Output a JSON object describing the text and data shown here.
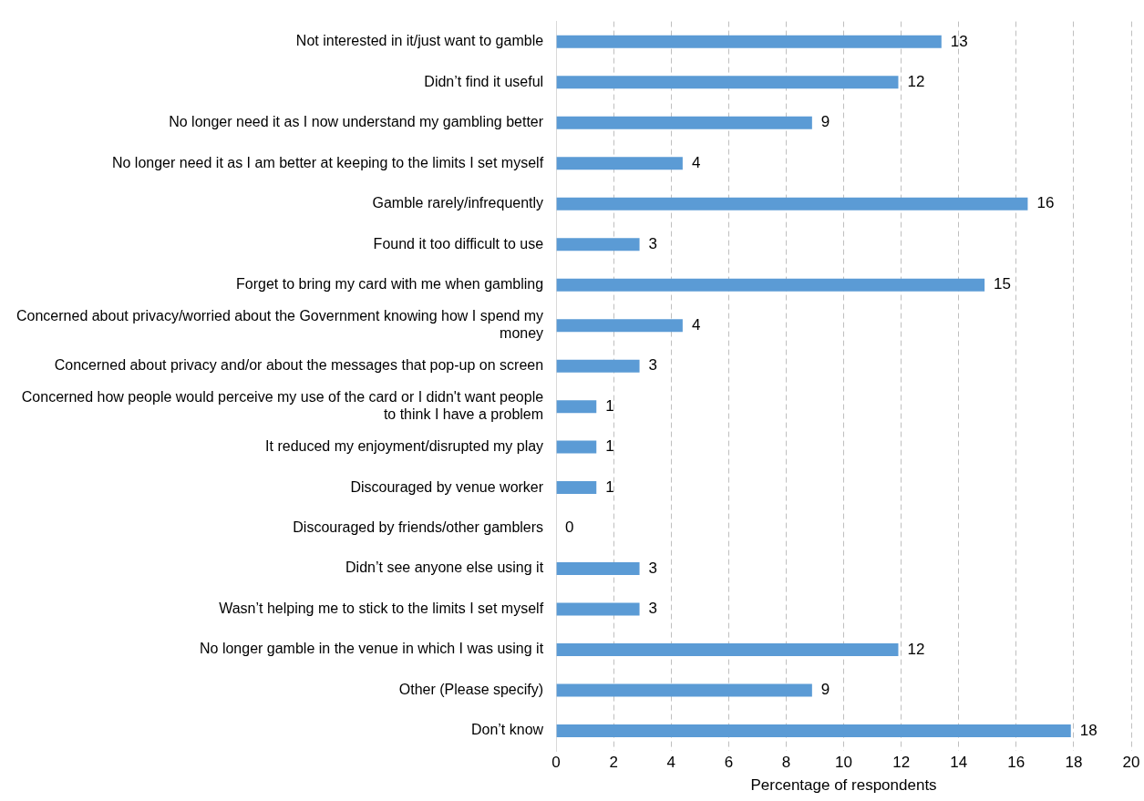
{
  "chart_data": {
    "type": "bar",
    "orientation": "horizontal",
    "xlabel": "Percentage of respondents",
    "categories": [
      "Not interested in it/just want to gamble",
      "Didn’t find it useful",
      "No longer need it as I now understand my gambling better",
      "No longer need it as I am better at keeping to the limits I set myself",
      "Gamble rarely/infrequently",
      "Found it too difficult to use",
      "Forget to bring my card with me when gambling",
      "Concerned about privacy/worried about the Government knowing how I spend my money",
      "Concerned about privacy and/or about the messages that pop-up on screen",
      "Concerned how people would perceive my use of the card or I didn't want people to think I have a problem",
      "It reduced my enjoyment/disrupted my play",
      "Discouraged by venue worker",
      "Discouraged by friends/other gamblers",
      "Didn’t see anyone else using it",
      "Wasn’t helping me to stick to the limits I set myself",
      "No longer gamble in the venue in which I was using it",
      "Other (Please specify)",
      "Don’t know"
    ],
    "values": [
      13.4,
      11.9,
      8.9,
      4.4,
      16.4,
      2.9,
      14.9,
      4.4,
      2.9,
      1.4,
      1.4,
      1.4,
      0,
      2.9,
      2.9,
      11.9,
      8.9,
      17.9
    ],
    "value_labels": [
      "13",
      "12",
      "9",
      "4",
      "16",
      "3",
      "15",
      "4",
      "3",
      "1",
      "1",
      "1",
      "0",
      "3",
      "3",
      "12",
      "9",
      "18"
    ],
    "color": "#5b9bd5",
    "xlim": [
      0,
      20
    ],
    "xticks": [
      0,
      2,
      4,
      6,
      8,
      10,
      12,
      14,
      16,
      18,
      20
    ],
    "grid": "x",
    "legend": false
  }
}
